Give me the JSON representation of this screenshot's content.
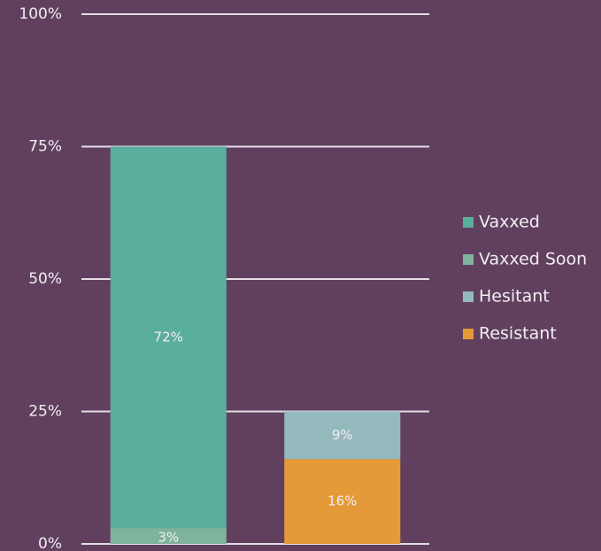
{
  "chart_data": {
    "type": "stacked_bar",
    "categories": [
      null,
      null
    ],
    "series": [
      {
        "name": "Vaxxed",
        "color": "#5aae9c",
        "values": [
          72,
          null
        ],
        "value_labels": [
          "72%",
          null
        ]
      },
      {
        "name": "Vaxxed Soon",
        "color": "#7fb39d",
        "values": [
          3,
          null
        ],
        "value_labels": [
          "3%",
          null
        ]
      },
      {
        "name": "Hesitant",
        "color": "#93b9bd",
        "values": [
          null,
          9
        ],
        "value_labels": [
          null,
          "9%"
        ]
      },
      {
        "name": "Resistant",
        "color": "#e59a3a",
        "values": [
          null,
          16
        ],
        "value_labels": [
          null,
          "16%"
        ]
      }
    ],
    "ylim": [
      0,
      100
    ],
    "yticks": [
      {
        "value": 0,
        "label": "0%"
      },
      {
        "value": 25,
        "label": "25%"
      },
      {
        "value": 50,
        "label": "50%"
      },
      {
        "value": 75,
        "label": "75%"
      },
      {
        "value": 100,
        "label": "100%"
      }
    ],
    "grid": true,
    "legend": "right"
  }
}
